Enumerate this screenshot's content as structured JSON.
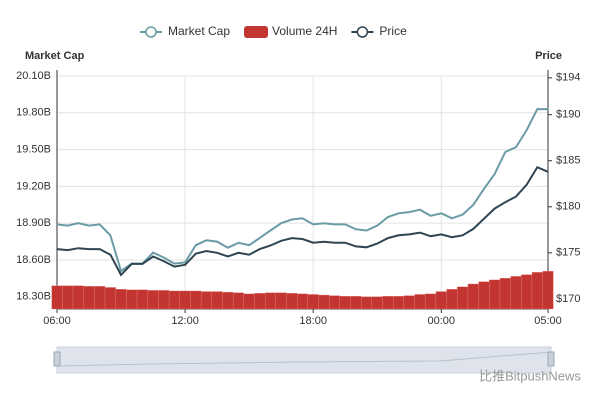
{
  "chart_data": {
    "type": "line",
    "axis_title_left": "Market Cap",
    "axis_title_right": "Price",
    "watermark": "比推BitpushNews",
    "categories": [
      "06:00",
      null,
      null,
      null,
      null,
      null,
      null,
      null,
      null,
      null,
      null,
      null,
      "12:00",
      null,
      null,
      null,
      null,
      null,
      null,
      null,
      null,
      null,
      null,
      null,
      "18:00",
      null,
      null,
      null,
      null,
      null,
      null,
      null,
      null,
      null,
      null,
      null,
      "00:00",
      null,
      null,
      null,
      null,
      null,
      null,
      null,
      null,
      null,
      "05:00"
    ],
    "series": [
      {
        "name": "Market Cap",
        "color": "#6a9ca5",
        "axis": "y",
        "values": [
          18.89,
          18.88,
          18.9,
          18.88,
          18.89,
          18.8,
          18.51,
          18.57,
          18.57,
          18.66,
          18.62,
          18.57,
          18.58,
          18.72,
          18.76,
          18.75,
          18.7,
          18.74,
          18.72,
          18.78,
          18.84,
          18.9,
          18.93,
          18.94,
          18.89,
          18.9,
          18.89,
          18.89,
          18.85,
          18.84,
          18.88,
          18.95,
          18.98,
          18.99,
          19.01,
          18.96,
          18.98,
          18.94,
          18.97,
          19.05,
          19.18,
          19.3,
          19.48,
          19.52,
          19.66,
          19.83,
          19.83
        ]
      },
      {
        "name": "Volume 24H",
        "color": "#c23531",
        "axis": "y3",
        "values": [
          4.0,
          4.0,
          4.0,
          3.9,
          3.9,
          3.7,
          3.4,
          3.3,
          3.3,
          3.2,
          3.2,
          3.1,
          3.1,
          3.1,
          3.0,
          3.0,
          2.9,
          2.8,
          2.6,
          2.7,
          2.8,
          2.8,
          2.7,
          2.6,
          2.5,
          2.4,
          2.3,
          2.2,
          2.2,
          2.1,
          2.1,
          2.2,
          2.2,
          2.3,
          2.5,
          2.6,
          3.0,
          3.4,
          3.8,
          4.3,
          4.7,
          5.0,
          5.3,
          5.6,
          5.9,
          6.3,
          6.5
        ]
      },
      {
        "name": "Price",
        "color": "#2f4554",
        "axis": "y2",
        "values": [
          175.4,
          175.3,
          175.5,
          175.4,
          175.4,
          174.8,
          172.6,
          173.8,
          173.8,
          174.6,
          174.1,
          173.5,
          173.7,
          174.9,
          175.2,
          175.0,
          174.6,
          175.0,
          174.8,
          175.4,
          175.8,
          176.3,
          176.6,
          176.5,
          176.1,
          176.2,
          176.1,
          176.1,
          175.7,
          175.6,
          176.0,
          176.6,
          176.9,
          177.0,
          177.2,
          176.8,
          177.0,
          176.7,
          176.9,
          177.6,
          178.7,
          179.8,
          180.5,
          181.1,
          182.4,
          184.3,
          183.8
        ]
      }
    ],
    "ylim": [
      18.2,
      20.1
    ],
    "yticks": [
      {
        "value": 18.3,
        "label": "18.30B"
      },
      {
        "value": 18.6,
        "label": "18.60B"
      },
      {
        "value": 18.9,
        "label": "18.90B"
      },
      {
        "value": 19.2,
        "label": "19.20B"
      },
      {
        "value": 19.5,
        "label": "19.50B"
      },
      {
        "value": 19.8,
        "label": "19.80B"
      },
      {
        "value": 20.1,
        "label": "20.10B"
      }
    ],
    "y2lim": [
      168.9,
      194.2
    ],
    "y2ticks": [
      {
        "value": 170,
        "label": "$170"
      },
      {
        "value": 175,
        "label": "$175"
      },
      {
        "value": 180,
        "label": "$180"
      },
      {
        "value": 185,
        "label": "$185"
      },
      {
        "value": 190,
        "label": "$190"
      },
      {
        "value": 194,
        "label": "$194"
      }
    ],
    "y3lim": [
      0,
      40
    ],
    "grid": true,
    "legend": "top"
  }
}
